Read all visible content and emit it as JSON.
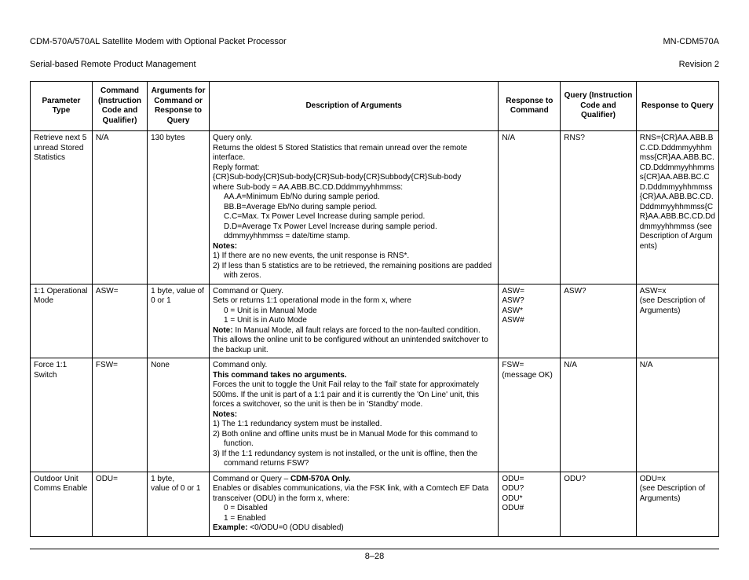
{
  "header": {
    "left_line1": "CDM-570A/570AL Satellite Modem with Optional Packet Processor",
    "left_line2": "Serial-based Remote Product Management",
    "right_line1": "MN-CDM570A",
    "right_line2": "Revision 2"
  },
  "footer": {
    "page_number": "8–28"
  },
  "table": {
    "headers": {
      "c0": "Parameter Type",
      "c1": "Command (Instruction Code and Qualifier)",
      "c2": "Arguments for Command or Response to Query",
      "c3": "Description of Arguments",
      "c4": "Response to Command",
      "c5": "Query (Instruction Code and Qualifier)",
      "c6": "Response to Query"
    },
    "rows": [
      {
        "param": "Retrieve next 5 unread Stored Statistics",
        "cmd": "N/A",
        "args": "130 bytes",
        "desc": {
          "l0": "Query only.",
          "l1": "Returns the oldest 5 Stored Statistics that remain unread over the remote interface.",
          "l2": "Reply format:",
          "l3": "{CR}Sub-body{CR}Sub-body{CR}Sub-body{CR}Subbody{CR}Sub-body",
          "l4": "where Sub-body = AA.ABB.BC.CD.Dddmmyyhhmmss:",
          "l5": "AA.A=Minimum Eb/No during sample period.",
          "l6": "BB.B=Average Eb/No during sample period.",
          "l7": "C.C=Max. Tx Power Level Increase during sample period.",
          "l8": "D.D=Average Tx Power Level Increase during sample period.",
          "l9": "ddmmyyhhmmss = date/time stamp.",
          "notes_label": "Notes:",
          "n1": "1) If there are no new events, the unit response is RNS*.",
          "n2": "2) If less than 5 statistics are to be retrieved, the remaining positions are padded",
          "n2b": "with zeros."
        },
        "resp_cmd": "N/A",
        "query": "RNS?",
        "resp_query": "RNS={CR}AA.ABB.BC.CD.Dddmmyyhhmmss{CR}AA.ABB.BC.CD.Dddmmyyhhmmss{CR}AA.ABB.BC.CD.Dddmmyyhhmmss{CR}AA.ABB.BC.CD.Dddmmyyhhmmss{CR}AA.ABB.BC.CD.Dddmmyyhhmmss (see Description of Arguments)"
      },
      {
        "param": "1:1 Operational Mode",
        "cmd": "ASW=",
        "args": "1 byte, value of 0 or 1",
        "desc": {
          "l0": "Command or Query.",
          "l1": "Sets or returns 1:1 operational mode in the form x, where",
          "l2": "0 = Unit is in Manual Mode",
          "l3": "1 = Unit is in Auto Mode",
          "note_label": "Note:",
          "note_text": " In Manual Mode, all fault relays are forced to the non-faulted condition. This allows the online unit to be configured without an unintended switchover to the backup unit."
        },
        "resp_cmd": "ASW=\nASW?\nASW*\nASW#",
        "query": "ASW?",
        "resp_query": "ASW=x\n(see Description of Arguments)"
      },
      {
        "param": "Force 1:1 Switch",
        "cmd": "FSW=",
        "args": "None",
        "desc": {
          "l0": "Command only.",
          "l1": "This command takes no arguments.",
          "l2": "Forces the unit to toggle the Unit Fail relay to the 'fail' state for approximately 500ms. If the unit is part of a 1:1 pair and it is currently the 'On Line' unit, this forces a switchover, so the unit is then be in 'Standby' mode.",
          "notes_label": "Notes:",
          "n1": "1) The 1:1 redundancy system must be installed.",
          "n2": "2) Both online and offline units must be in Manual Mode for this command to",
          "n2b": "function.",
          "n3": "3) If the 1:1 redundancy system is not installed, or the unit is offline, then the",
          "n3b": "command returns FSW?"
        },
        "resp_cmd": "FSW= (message OK)",
        "query": "N/A",
        "resp_query": "N/A"
      },
      {
        "param": "Outdoor Unit Comms Enable",
        "cmd": "ODU=",
        "args": "1 byte,\nvalue of 0 or 1",
        "desc": {
          "pre": "Command or Query – ",
          "bold": "CDM-570A Only.",
          "l1": "Enables or disables communications, via the FSK link, with a Comtech EF Data transceiver (ODU) in the form x, where:",
          "l2": "0 = Disabled",
          "l3": "1 = Enabled",
          "ex_label": "Example:",
          "ex_text": " <0/ODU=0 (ODU disabled)"
        },
        "resp_cmd": "ODU=\nODU?\nODU*\nODU#",
        "query": "ODU?",
        "resp_query": "ODU=x\n(see Description of Arguments)"
      }
    ]
  }
}
